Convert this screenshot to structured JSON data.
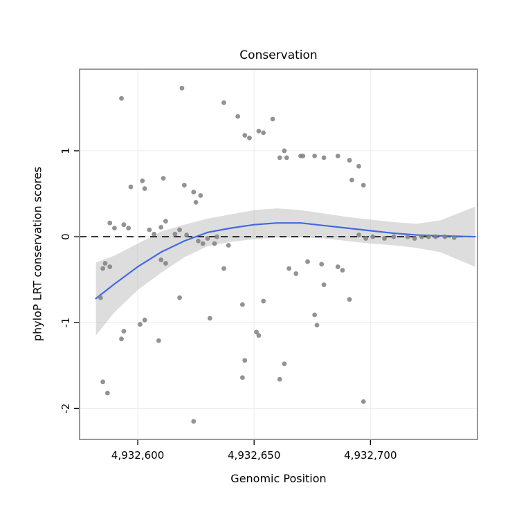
{
  "chart_data": {
    "type": "scatter",
    "title": "Conservation",
    "xlabel": "Genomic Position",
    "ylabel": "phyloP LRT conservation scores",
    "xlim": [
      4932575,
      4932746
    ],
    "ylim": [
      -2.36,
      1.95
    ],
    "grid": true,
    "legend": "none",
    "x_ticks": [
      {
        "value": 4932600,
        "label": "4,932,600"
      },
      {
        "value": 4932650,
        "label": "4,932,650"
      },
      {
        "value": 4932700,
        "label": "4,932,700"
      }
    ],
    "y_ticks": [
      {
        "value": 1,
        "label": "1"
      },
      {
        "value": 0,
        "label": "0"
      },
      {
        "value": -1,
        "label": "-1"
      },
      {
        "value": -2,
        "label": "-2"
      }
    ],
    "reference_line": {
      "y": 0,
      "style": "dashed",
      "color": "#000000"
    },
    "colors": {
      "point": "#808080",
      "smooth": "#4169e1",
      "band": "#9e9e9e",
      "band_opacity": 0.35,
      "grid": "#ebebeb",
      "panel_border": "#7f7f7f",
      "panel_bg": "#ffffff"
    },
    "points": [
      [
        4932584,
        -0.71
      ],
      [
        4932585,
        -0.37
      ],
      [
        4932586,
        -0.31
      ],
      [
        4932588,
        -0.35
      ],
      [
        4932585,
        -1.69
      ],
      [
        4932587,
        -1.82
      ],
      [
        4932593,
        1.61
      ],
      [
        4932588,
        0.16
      ],
      [
        4932590,
        0.1
      ],
      [
        4932594,
        0.14
      ],
      [
        4932596,
        0.1
      ],
      [
        4932597,
        0.58
      ],
      [
        4932593,
        -1.19
      ],
      [
        4932594,
        -1.1
      ],
      [
        4932601,
        -1.02
      ],
      [
        4932603,
        -0.97
      ],
      [
        4932602,
        0.65
      ],
      [
        4932603,
        0.56
      ],
      [
        4932605,
        0.08
      ],
      [
        4932607,
        0.03
      ],
      [
        4932609,
        -1.21
      ],
      [
        4932610,
        0.11
      ],
      [
        4932610,
        -0.27
      ],
      [
        4932612,
        -0.31
      ],
      [
        4932611,
        0.68
      ],
      [
        4932612,
        0.18
      ],
      [
        4932616,
        0.03
      ],
      [
        4932618,
        -0.71
      ],
      [
        4932618,
        0.08
      ],
      [
        4932619,
        1.73
      ],
      [
        4932620,
        0.6
      ],
      [
        4932621,
        0.02
      ],
      [
        4932624,
        0.52
      ],
      [
        4932624,
        -2.15
      ],
      [
        4932625,
        0.4
      ],
      [
        4932626,
        -0.05
      ],
      [
        4932627,
        0.48
      ],
      [
        4932628,
        -0.08
      ],
      [
        4932630,
        -0.02
      ],
      [
        4932631,
        -0.95
      ],
      [
        4932633,
        -0.08
      ],
      [
        4932634,
        0.0
      ],
      [
        4932637,
        1.56
      ],
      [
        4932637,
        -0.37
      ],
      [
        4932639,
        -0.1
      ],
      [
        4932643,
        1.4
      ],
      [
        4932645,
        -0.79
      ],
      [
        4932645,
        -1.64
      ],
      [
        4932646,
        1.18
      ],
      [
        4932646,
        -1.44
      ],
      [
        4932648,
        1.15
      ],
      [
        4932651,
        -1.11
      ],
      [
        4932652,
        -1.15
      ],
      [
        4932652,
        1.23
      ],
      [
        4932654,
        1.21
      ],
      [
        4932654,
        -0.75
      ],
      [
        4932658,
        1.37
      ],
      [
        4932661,
        0.92
      ],
      [
        4932661,
        -1.66
      ],
      [
        4932663,
        1.0
      ],
      [
        4932663,
        -1.48
      ],
      [
        4932664,
        0.92
      ],
      [
        4932665,
        -0.37
      ],
      [
        4932668,
        -0.43
      ],
      [
        4932670,
        0.94
      ],
      [
        4932671,
        0.94
      ],
      [
        4932673,
        -0.29
      ],
      [
        4932676,
        0.94
      ],
      [
        4932676,
        -0.91
      ],
      [
        4932677,
        -1.03
      ],
      [
        4932679,
        -0.32
      ],
      [
        4932680,
        0.92
      ],
      [
        4932680,
        -0.56
      ],
      [
        4932686,
        0.94
      ],
      [
        4932686,
        -0.35
      ],
      [
        4932688,
        -0.39
      ],
      [
        4932691,
        0.89
      ],
      [
        4932691,
        -0.73
      ],
      [
        4932692,
        0.66
      ],
      [
        4932695,
        0.82
      ],
      [
        4932697,
        0.6
      ],
      [
        4932697,
        -1.92
      ],
      [
        4932695,
        0.02
      ],
      [
        4932698,
        -0.02
      ],
      [
        4932701,
        0.0
      ],
      [
        4932706,
        -0.02
      ],
      [
        4932710,
        0.0
      ],
      [
        4932716,
        0.0
      ],
      [
        4932719,
        -0.02
      ],
      [
        4932722,
        0.0
      ],
      [
        4932725,
        0.0
      ],
      [
        4932728,
        0.0
      ],
      [
        4932732,
        0.0
      ],
      [
        4932736,
        -0.01
      ]
    ],
    "smooth_line": {
      "color": "#4169e1",
      "points": [
        [
          4932582,
          -0.72
        ],
        [
          4932590,
          -0.55
        ],
        [
          4932600,
          -0.35
        ],
        [
          4932610,
          -0.18
        ],
        [
          4932620,
          -0.05
        ],
        [
          4932630,
          0.05
        ],
        [
          4932640,
          0.1
        ],
        [
          4932650,
          0.14
        ],
        [
          4932660,
          0.16
        ],
        [
          4932670,
          0.16
        ],
        [
          4932680,
          0.13
        ],
        [
          4932690,
          0.1
        ],
        [
          4932700,
          0.07
        ],
        [
          4932710,
          0.04
        ],
        [
          4932720,
          0.02
        ],
        [
          4932730,
          0.01
        ],
        [
          4932745,
          0.0
        ]
      ]
    },
    "confidence_band": {
      "color": "#9e9e9e",
      "upper": [
        [
          4932582,
          -0.3
        ],
        [
          4932590,
          -0.22
        ],
        [
          4932600,
          -0.08
        ],
        [
          4932610,
          0.06
        ],
        [
          4932620,
          0.14
        ],
        [
          4932630,
          0.21
        ],
        [
          4932640,
          0.26
        ],
        [
          4932650,
          0.31
        ],
        [
          4932660,
          0.33
        ],
        [
          4932670,
          0.31
        ],
        [
          4932680,
          0.27
        ],
        [
          4932690,
          0.23
        ],
        [
          4932700,
          0.2
        ],
        [
          4932710,
          0.17
        ],
        [
          4932720,
          0.15
        ],
        [
          4932730,
          0.19
        ],
        [
          4932745,
          0.35
        ]
      ],
      "lower": [
        [
          4932582,
          -1.15
        ],
        [
          4932590,
          -0.88
        ],
        [
          4932600,
          -0.62
        ],
        [
          4932610,
          -0.42
        ],
        [
          4932620,
          -0.24
        ],
        [
          4932630,
          -0.11
        ],
        [
          4932640,
          -0.06
        ],
        [
          4932650,
          -0.03
        ],
        [
          4932660,
          -0.01
        ],
        [
          4932670,
          -0.01
        ],
        [
          4932680,
          -0.02
        ],
        [
          4932690,
          -0.05
        ],
        [
          4932700,
          -0.08
        ],
        [
          4932710,
          -0.1
        ],
        [
          4932720,
          -0.13
        ],
        [
          4932730,
          -0.18
        ],
        [
          4932745,
          -0.35
        ]
      ]
    }
  }
}
